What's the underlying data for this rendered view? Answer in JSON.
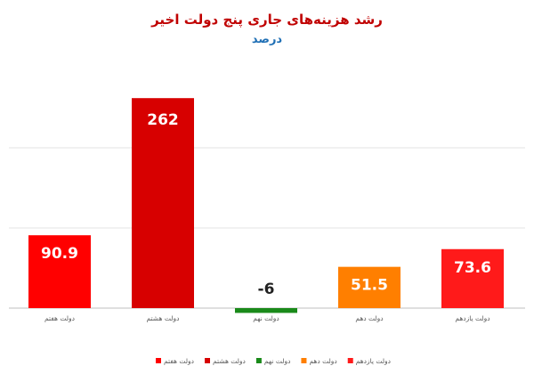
{
  "chart_data": {
    "type": "bar",
    "title": "رشد هزینه‌های جاری پنج دولت اخیر",
    "subtitle": "درصد",
    "categories": [
      "دولت هفتم",
      "دولت هشتم",
      "دولت نهم",
      "دولت دهم",
      "دولت یازدهم"
    ],
    "values": [
      90.9,
      262,
      -6,
      51.5,
      73.6
    ],
    "value_labels": [
      "90.9",
      "262",
      "-6",
      "51.5",
      "73.6"
    ],
    "colors": [
      "#ff0000",
      "#d70000",
      "#1a8a1a",
      "#ff7f00",
      "#ff1a1a"
    ],
    "legend_position": "bottom",
    "ylim": [
      -15,
      300
    ],
    "grid": true,
    "gridlines": [
      -100,
      0,
      100,
      200
    ]
  }
}
